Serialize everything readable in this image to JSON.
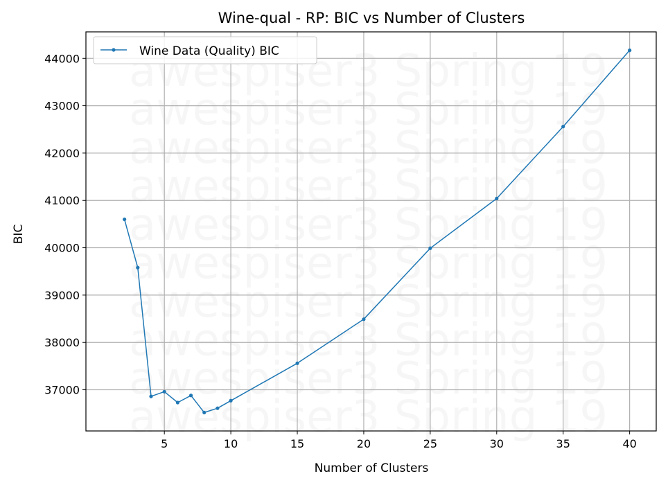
{
  "chart_data": {
    "type": "line",
    "title": "Wine-qual - RP: BIC vs Number of Clusters",
    "xlabel": "Number of Clusters",
    "ylabel": "BIC",
    "xlim": [
      -0.9,
      42
    ],
    "ylim": [
      36130,
      44560
    ],
    "xticks": [
      5,
      10,
      15,
      20,
      25,
      30,
      35,
      40
    ],
    "yticks": [
      37000,
      38000,
      39000,
      40000,
      41000,
      42000,
      43000,
      44000
    ],
    "grid": true,
    "legend_position": "top-left",
    "watermark": "awespiser3 Spring 19",
    "series": [
      {
        "name": "Wine Data (Quality) BIC",
        "color": "#1f77b4",
        "x": [
          2,
          3,
          4,
          5,
          6,
          7,
          8,
          9,
          10,
          15,
          20,
          25,
          30,
          35,
          40
        ],
        "y": [
          40600,
          39580,
          36860,
          36960,
          36730,
          36880,
          36520,
          36610,
          36770,
          37560,
          38490,
          39990,
          41040,
          42560,
          44170
        ]
      }
    ]
  }
}
